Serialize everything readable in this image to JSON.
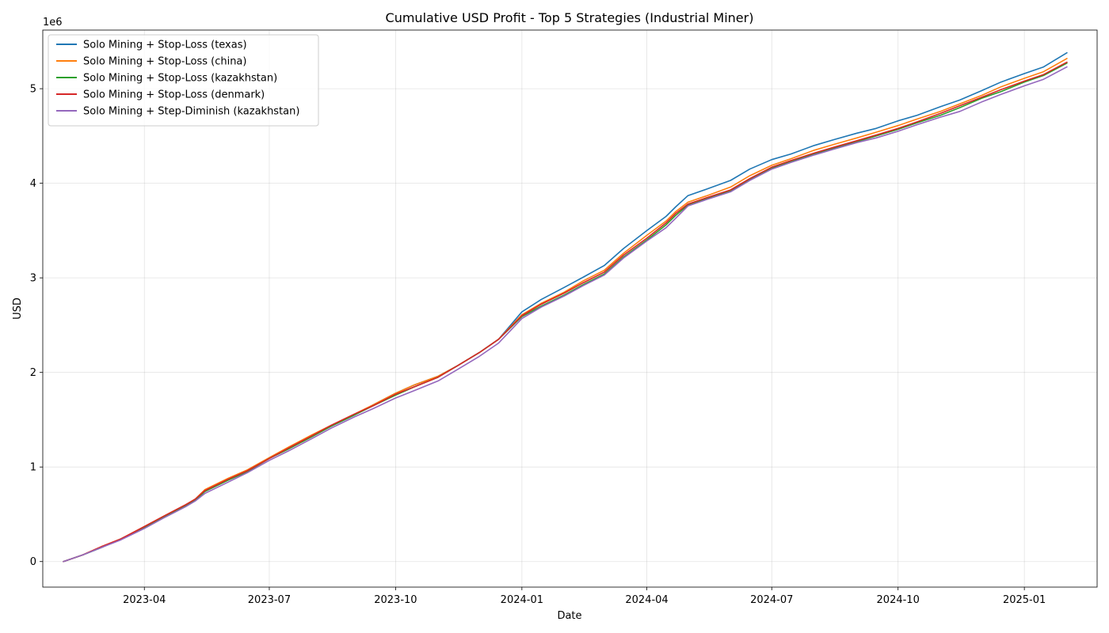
{
  "chart_data": {
    "type": "line",
    "title": "Cumulative USD Profit - Top 5 Strategies (Industrial Miner)",
    "xlabel": "Date",
    "ylabel": "USD",
    "y_offset_label": "1e6",
    "xlim": [
      "2023-01-17",
      "2025-02-23"
    ],
    "ylim": [
      -0.27,
      5.62
    ],
    "y_unit_multiplier": 1000000,
    "grid": true,
    "legend_position": "top-left",
    "x_ticks": [
      {
        "date": "2023-04-01",
        "label": "2023-04"
      },
      {
        "date": "2023-07-01",
        "label": "2023-07"
      },
      {
        "date": "2023-10-01",
        "label": "2023-10"
      },
      {
        "date": "2024-01-01",
        "label": "2024-01"
      },
      {
        "date": "2024-04-01",
        "label": "2024-04"
      },
      {
        "date": "2024-07-01",
        "label": "2024-07"
      },
      {
        "date": "2024-10-01",
        "label": "2024-10"
      },
      {
        "date": "2025-01-01",
        "label": "2025-01"
      }
    ],
    "y_ticks": [
      {
        "value": 0,
        "label": "0"
      },
      {
        "value": 1,
        "label": "1"
      },
      {
        "value": 2,
        "label": "2"
      },
      {
        "value": 3,
        "label": "3"
      },
      {
        "value": 4,
        "label": "4"
      },
      {
        "value": 5,
        "label": "5"
      }
    ],
    "x": [
      "2023-02-01",
      "2023-02-15",
      "2023-03-01",
      "2023-03-15",
      "2023-04-01",
      "2023-04-15",
      "2023-05-01",
      "2023-05-08",
      "2023-05-15",
      "2023-06-01",
      "2023-06-15",
      "2023-07-01",
      "2023-07-15",
      "2023-08-01",
      "2023-08-15",
      "2023-09-01",
      "2023-09-15",
      "2023-10-01",
      "2023-10-15",
      "2023-11-01",
      "2023-11-15",
      "2023-12-01",
      "2023-12-15",
      "2024-01-01",
      "2024-01-15",
      "2024-02-01",
      "2024-02-15",
      "2024-03-01",
      "2024-03-15",
      "2024-04-01",
      "2024-04-15",
      "2024-04-22",
      "2024-05-01",
      "2024-05-15",
      "2024-06-01",
      "2024-06-15",
      "2024-07-01",
      "2024-07-15",
      "2024-08-01",
      "2024-08-15",
      "2024-09-01",
      "2024-09-15",
      "2024-10-01",
      "2024-10-15",
      "2024-11-01",
      "2024-11-15",
      "2024-12-01",
      "2024-12-15",
      "2025-01-01",
      "2025-01-15",
      "2025-02-01"
    ],
    "series": [
      {
        "name": "Solo Mining + Stop-Loss (texas)",
        "color": "#1f77b4",
        "values": [
          0,
          0.07,
          0.15,
          0.24,
          0.36,
          0.47,
          0.59,
          0.65,
          0.74,
          0.87,
          0.96,
          1.09,
          1.2,
          1.33,
          1.43,
          1.55,
          1.66,
          1.78,
          1.87,
          1.96,
          2.07,
          2.21,
          2.35,
          2.64,
          2.77,
          2.9,
          3.01,
          3.13,
          3.31,
          3.5,
          3.65,
          3.75,
          3.87,
          3.94,
          4.03,
          4.15,
          4.25,
          4.31,
          4.4,
          4.46,
          4.53,
          4.58,
          4.66,
          4.72,
          4.81,
          4.88,
          4.98,
          5.07,
          5.16,
          5.23,
          5.38
        ]
      },
      {
        "name": "Solo Mining + Stop-Loss (china)",
        "color": "#ff7f0e",
        "values": [
          0,
          0.07,
          0.16,
          0.24,
          0.37,
          0.48,
          0.6,
          0.66,
          0.76,
          0.88,
          0.97,
          1.1,
          1.21,
          1.34,
          1.44,
          1.56,
          1.66,
          1.78,
          1.87,
          1.96,
          2.07,
          2.21,
          2.35,
          2.61,
          2.73,
          2.85,
          2.97,
          3.08,
          3.26,
          3.45,
          3.6,
          3.7,
          3.8,
          3.87,
          3.96,
          4.08,
          4.19,
          4.26,
          4.35,
          4.41,
          4.48,
          4.54,
          4.61,
          4.68,
          4.76,
          4.84,
          4.93,
          5.02,
          5.11,
          5.18,
          5.32
        ]
      },
      {
        "name": "Solo Mining + Stop-Loss (kazakhstan)",
        "color": "#2ca02c",
        "values": [
          0,
          0.07,
          0.15,
          0.24,
          0.36,
          0.47,
          0.59,
          0.65,
          0.74,
          0.86,
          0.95,
          1.09,
          1.19,
          1.32,
          1.43,
          1.55,
          1.65,
          1.76,
          1.85,
          1.95,
          2.07,
          2.21,
          2.35,
          2.59,
          2.7,
          2.82,
          2.93,
          3.04,
          3.22,
          3.4,
          3.56,
          3.66,
          3.77,
          3.84,
          3.92,
          4.04,
          4.16,
          4.23,
          4.31,
          4.37,
          4.44,
          4.5,
          4.57,
          4.64,
          4.72,
          4.8,
          4.9,
          4.97,
          5.07,
          5.14,
          5.27
        ]
      },
      {
        "name": "Solo Mining + Stop-Loss (denmark)",
        "color": "#d62728",
        "values": [
          0,
          0.07,
          0.16,
          0.24,
          0.37,
          0.48,
          0.6,
          0.66,
          0.75,
          0.87,
          0.96,
          1.09,
          1.2,
          1.33,
          1.44,
          1.56,
          1.65,
          1.77,
          1.85,
          1.95,
          2.07,
          2.21,
          2.35,
          2.6,
          2.72,
          2.84,
          2.95,
          3.06,
          3.24,
          3.42,
          3.58,
          3.68,
          3.78,
          3.85,
          3.93,
          4.05,
          4.17,
          4.24,
          4.32,
          4.38,
          4.45,
          4.51,
          4.58,
          4.65,
          4.74,
          4.82,
          4.91,
          4.99,
          5.08,
          5.15,
          5.28
        ]
      },
      {
        "name": "Solo Mining + Step-Diminish (kazakhstan)",
        "color": "#9467bd",
        "values": [
          0,
          0.07,
          0.15,
          0.23,
          0.35,
          0.46,
          0.58,
          0.64,
          0.72,
          0.84,
          0.94,
          1.07,
          1.17,
          1.3,
          1.41,
          1.53,
          1.62,
          1.73,
          1.81,
          1.91,
          2.03,
          2.17,
          2.31,
          2.57,
          2.69,
          2.81,
          2.92,
          3.03,
          3.21,
          3.39,
          3.53,
          3.63,
          3.76,
          3.83,
          3.91,
          4.03,
          4.15,
          4.22,
          4.3,
          4.36,
          4.43,
          4.48,
          4.55,
          4.62,
          4.7,
          4.76,
          4.86,
          4.94,
          5.03,
          5.1,
          5.23
        ]
      }
    ]
  }
}
